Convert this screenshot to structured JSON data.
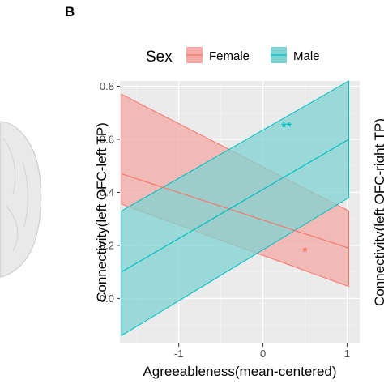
{
  "panel_letter": "B",
  "right_clipped_label": "Connectivity(left OFC-right TP)",
  "chart_data": {
    "type": "line",
    "title": "",
    "xlabel": "Agreeableness(mean-centered)",
    "ylabel": "Connectivity(left OFC-left TP)",
    "xlim": [
      -1.7,
      1.15
    ],
    "ylim": [
      -0.17,
      0.82
    ],
    "xticks": [
      -1,
      0,
      1
    ],
    "yticks": [
      0.0,
      0.2,
      0.4,
      0.6,
      0.8
    ],
    "xtick_labels": [
      "-1",
      "0",
      "1"
    ],
    "ytick_labels": [
      "0.0",
      "0.2",
      "0.4",
      "0.6",
      "0.8"
    ],
    "grid": true,
    "legend": {
      "title": "Sex",
      "placement": "top",
      "entries": [
        "Female",
        "Male"
      ]
    },
    "series": [
      {
        "name": "Female",
        "color": "#F8766D",
        "fill": "#F4A9A4",
        "x": [
          -1.68,
          1.02
        ],
        "y": [
          0.47,
          0.19
        ],
        "ci_upper": [
          0.77,
          0.33
        ],
        "ci_lower": [
          0.355,
          0.045
        ]
      },
      {
        "name": "Male",
        "color": "#00BFC4",
        "fill": "#7FD3D2",
        "x": [
          -1.68,
          1.02
        ],
        "y": [
          0.1,
          0.6
        ],
        "ci_upper": [
          0.33,
          0.82
        ],
        "ci_lower": [
          -0.14,
          0.38
        ]
      }
    ],
    "annotations": [
      {
        "text": "**",
        "x": 0.28,
        "y": 0.63,
        "color": "#00BFC4"
      },
      {
        "text": "*",
        "x": 0.5,
        "y": 0.16,
        "color": "#F8766D"
      }
    ]
  }
}
